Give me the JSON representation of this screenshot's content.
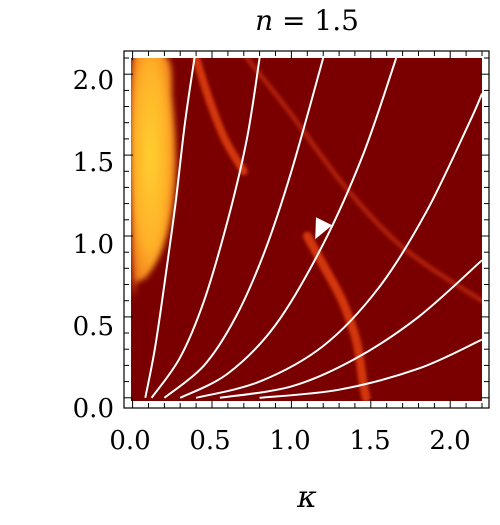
{
  "chart_data": {
    "type": "heatmap",
    "title": "n = 1.5",
    "title_var": "n",
    "title_rest": " = 1.5",
    "xlabel": "κ",
    "ylabel": "",
    "xlim": [
      0.0,
      2.2
    ],
    "ylim": [
      0.0,
      2.1
    ],
    "x_ticks": [
      0.0,
      0.5,
      1.0,
      1.5,
      2.0
    ],
    "x_tick_labels": [
      "0.0",
      "0.5",
      "1.0",
      "1.5",
      "2.0"
    ],
    "y_ticks": [
      0.0,
      0.5,
      1.0,
      1.5,
      2.0
    ],
    "y_tick_labels": [
      "0.0",
      "0.5",
      "1.0",
      "1.5",
      "2.0"
    ],
    "grid": false,
    "colors": {
      "background": "#7a0000",
      "band": "#d83a10",
      "hot_core": "#ffd030",
      "hot_mid": "#ff9a20",
      "hot_edge": "#d44010",
      "flow_lines": "#ffffff"
    },
    "hot_region": [
      [
        0.22,
        2.1
      ],
      [
        0.25,
        1.85
      ],
      [
        0.27,
        1.6
      ],
      [
        0.27,
        1.35
      ],
      [
        0.24,
        1.1
      ],
      [
        0.18,
        0.9
      ],
      [
        0.09,
        0.75
      ],
      [
        0.03,
        0.72
      ],
      [
        0.0,
        0.72
      ],
      [
        0.0,
        2.1
      ]
    ],
    "bands": [
      {
        "width": 0.05,
        "points": [
          [
            0.4,
            2.1
          ],
          [
            0.48,
            1.85
          ],
          [
            0.58,
            1.6
          ],
          [
            0.7,
            1.4
          ]
        ]
      },
      {
        "width": 0.055,
        "points": [
          [
            1.1,
            1.0
          ],
          [
            1.2,
            0.82
          ],
          [
            1.32,
            0.6
          ],
          [
            1.41,
            0.35
          ],
          [
            1.45,
            0.1
          ],
          [
            1.47,
            0.0
          ]
        ]
      },
      {
        "width": 0.03,
        "points": [
          [
            0.72,
            2.1
          ],
          [
            1.0,
            1.75
          ],
          [
            1.3,
            1.35
          ],
          [
            1.6,
            1.02
          ],
          [
            1.85,
            0.82
          ],
          [
            2.2,
            0.6
          ]
        ]
      }
    ],
    "flow_lines": [
      {
        "points": [
          [
            0.08,
            0.0
          ],
          [
            0.14,
            0.3
          ],
          [
            0.2,
            0.7
          ],
          [
            0.27,
            1.2
          ],
          [
            0.33,
            1.7
          ],
          [
            0.39,
            2.1
          ]
        ]
      },
      {
        "points": [
          [
            0.12,
            0.0
          ],
          [
            0.3,
            0.25
          ],
          [
            0.45,
            0.6
          ],
          [
            0.6,
            1.1
          ],
          [
            0.72,
            1.6
          ],
          [
            0.8,
            2.1
          ]
        ]
      },
      {
        "points": [
          [
            0.2,
            0.0
          ],
          [
            0.45,
            0.2
          ],
          [
            0.65,
            0.5
          ],
          [
            0.83,
            0.9
          ],
          [
            1.0,
            1.4
          ],
          [
            1.2,
            2.1
          ]
        ]
      },
      {
        "points": [
          [
            0.3,
            0.0
          ],
          [
            0.6,
            0.15
          ],
          [
            0.9,
            0.45
          ],
          [
            1.2,
            0.95
          ],
          [
            1.45,
            1.5
          ],
          [
            1.66,
            2.1
          ]
        ]
      },
      {
        "points": [
          [
            0.4,
            0.0
          ],
          [
            0.8,
            0.1
          ],
          [
            1.2,
            0.32
          ],
          [
            1.55,
            0.68
          ],
          [
            1.85,
            1.15
          ],
          [
            2.12,
            1.7
          ],
          [
            2.2,
            1.88
          ]
        ]
      },
      {
        "points": [
          [
            0.55,
            0.0
          ],
          [
            1.0,
            0.07
          ],
          [
            1.4,
            0.24
          ],
          [
            1.8,
            0.5
          ],
          [
            2.2,
            0.85
          ]
        ]
      },
      {
        "points": [
          [
            0.8,
            0.0
          ],
          [
            1.3,
            0.05
          ],
          [
            1.8,
            0.18
          ],
          [
            2.2,
            0.36
          ]
        ]
      }
    ],
    "arrow": {
      "x": 1.15,
      "y": 0.98,
      "dx": -0.1,
      "dy": -0.2
    }
  }
}
